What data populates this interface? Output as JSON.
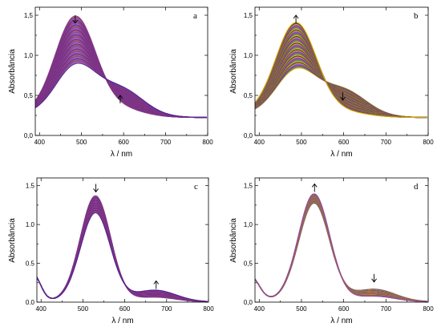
{
  "chart_data": [
    {
      "type": "line",
      "panel_label": "a",
      "xlabel": "λ / nm",
      "ylabel": "Absorbância",
      "xlim": [
        390,
        800
      ],
      "ylim": [
        0.0,
        1.6
      ],
      "xticks": [
        400,
        500,
        600,
        700,
        800
      ],
      "xtick_labels": [
        "400",
        "500",
        "600",
        "700",
        "800"
      ],
      "yticks": [
        0.0,
        0.5,
        1.0,
        1.5
      ],
      "ytick_labels": [
        "0,0",
        "0,5",
        "1,0",
        "1,5"
      ],
      "n_curves": 50,
      "palette": [
        "#7b2d8e",
        "#c0392b",
        "#2a3fbf",
        "#d0449a",
        "#3d1f8f"
      ],
      "start_curve": {
        "baseline": 0.22,
        "bands": [
          {
            "center": 485,
            "height": 1.23,
            "width": 48
          },
          {
            "center": 590,
            "height": 0.1,
            "width": 55
          }
        ],
        "tail": 0.04
      },
      "end_curve": {
        "baseline": 0.22,
        "bands": [
          {
            "center": 485,
            "height": 0.6,
            "width": 48
          },
          {
            "center": 592,
            "height": 0.34,
            "width": 55
          }
        ],
        "tail": 0.04
      },
      "arrows": [
        {
          "x": 485,
          "y": 1.4,
          "dir": "down"
        },
        {
          "x": 592,
          "y": 0.4,
          "dir": "up"
        }
      ]
    },
    {
      "type": "line",
      "panel_label": "b",
      "xlabel": "λ / nm",
      "ylabel": "Absorbância",
      "xlim": [
        390,
        800
      ],
      "ylim": [
        0.0,
        1.6
      ],
      "xticks": [
        400,
        500,
        600,
        700,
        800
      ],
      "xtick_labels": [
        "400",
        "500",
        "600",
        "700",
        "800"
      ],
      "yticks": [
        0.0,
        0.5,
        1.0,
        1.5
      ],
      "ytick_labels": [
        "0,0",
        "0,5",
        "1,0",
        "1,5"
      ],
      "n_curves": 50,
      "palette": [
        "#e6b800",
        "#2e8b57",
        "#c0392b",
        "#2a3fbf",
        "#8e44ad",
        "#e67e22",
        "#1a1a1a"
      ],
      "start_curve": {
        "baseline": 0.22,
        "bands": [
          {
            "center": 487,
            "height": 0.55,
            "width": 48
          },
          {
            "center": 598,
            "height": 0.33,
            "width": 55
          }
        ],
        "tail": 0.04
      },
      "end_curve": {
        "baseline": 0.22,
        "bands": [
          {
            "center": 487,
            "height": 1.16,
            "width": 48
          },
          {
            "center": 598,
            "height": 0.06,
            "width": 55
          }
        ],
        "tail": 0.04
      },
      "arrows": [
        {
          "x": 487,
          "y": 1.4,
          "dir": "up"
        },
        {
          "x": 598,
          "y": 0.44,
          "dir": "down"
        }
      ]
    },
    {
      "type": "line",
      "panel_label": "c",
      "xlabel": "λ / nm",
      "ylabel": "Absorbância",
      "xlim": [
        390,
        800
      ],
      "ylim": [
        0.0,
        1.6
      ],
      "xticks": [
        400,
        500,
        600,
        700,
        800
      ],
      "xtick_labels": [
        "400",
        "500",
        "600",
        "700",
        "800"
      ],
      "yticks": [
        0.0,
        0.5,
        1.0,
        1.5
      ],
      "ytick_labels": [
        "0.0",
        "0.5",
        "1.0",
        "1.5"
      ],
      "n_curves": 35,
      "palette": [
        "#2a3fbf",
        "#c0392b",
        "#7b2d8e",
        "#d0449a",
        "#3d1f8f"
      ],
      "start_curve": {
        "baseline": 0.0,
        "bands": [
          {
            "center": 530,
            "height": 1.36,
            "width": 36
          },
          {
            "center": 672,
            "height": 0.06,
            "width": 50
          },
          {
            "center": 380,
            "height": 0.35,
            "width": 18
          }
        ],
        "tail": 0.02
      },
      "end_curve": {
        "baseline": 0.0,
        "bands": [
          {
            "center": 530,
            "height": 1.14,
            "width": 36
          },
          {
            "center": 672,
            "height": 0.15,
            "width": 50
          },
          {
            "center": 380,
            "height": 0.35,
            "width": 18
          }
        ],
        "tail": 0.02
      },
      "arrows": [
        {
          "x": 531,
          "y": 1.42,
          "dir": "down"
        },
        {
          "x": 675,
          "y": 0.17,
          "dir": "up"
        }
      ]
    },
    {
      "type": "line",
      "panel_label": "d",
      "xlabel": "λ / nm",
      "ylabel": "Absorbância",
      "xlim": [
        390,
        800
      ],
      "ylim": [
        0.0,
        1.6
      ],
      "xticks": [
        400,
        500,
        600,
        700,
        800
      ],
      "xtick_labels": [
        "400",
        "500",
        "600",
        "700",
        "800"
      ],
      "yticks": [
        0.0,
        0.5,
        1.0,
        1.5
      ],
      "ytick_labels": [
        "0,0",
        "0,5",
        "1,0",
        "1,5"
      ],
      "n_curves": 35,
      "palette": [
        "#2e8b57",
        "#c0392b",
        "#2a3fbf",
        "#e67e22",
        "#8e44ad",
        "#e6b800"
      ],
      "start_curve": {
        "baseline": 0.0,
        "bands": [
          {
            "center": 530,
            "height": 1.26,
            "width": 37
          },
          {
            "center": 672,
            "height": 0.16,
            "width": 50
          },
          {
            "center": 380,
            "height": 0.3,
            "width": 20
          }
        ],
        "tail": 0.03
      },
      "end_curve": {
        "baseline": 0.0,
        "bands": [
          {
            "center": 530,
            "height": 1.38,
            "width": 37
          },
          {
            "center": 672,
            "height": 0.07,
            "width": 50
          },
          {
            "center": 380,
            "height": 0.3,
            "width": 20
          }
        ],
        "tail": 0.03
      },
      "arrows": [
        {
          "x": 531,
          "y": 1.42,
          "dir": "up"
        },
        {
          "x": 672,
          "y": 0.26,
          "dir": "down"
        }
      ]
    }
  ]
}
